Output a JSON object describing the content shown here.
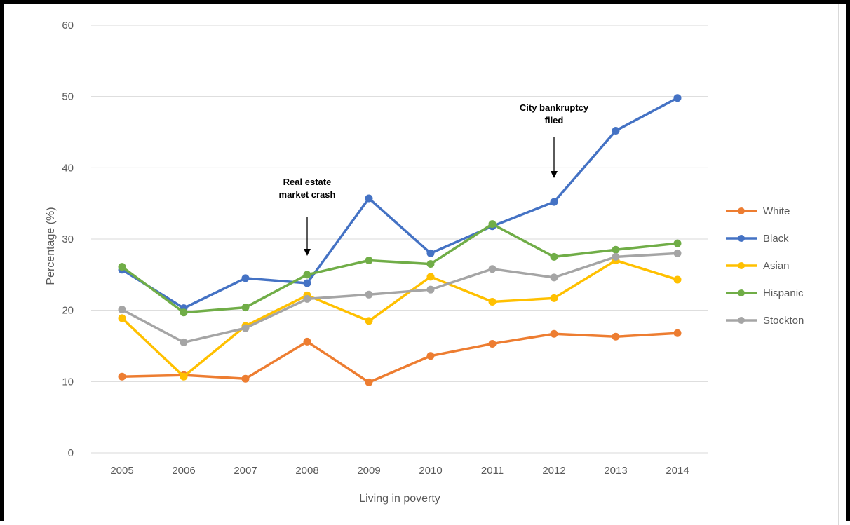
{
  "chart_data": {
    "type": "line",
    "title": "",
    "xlabel": "Living in poverty",
    "ylabel": "Percentage (%)",
    "categories": [
      "2005",
      "2006",
      "2007",
      "2008",
      "2009",
      "2010",
      "2011",
      "2012",
      "2013",
      "2014"
    ],
    "ylim": [
      0,
      60
    ],
    "yticks": [
      0,
      10,
      20,
      30,
      40,
      50,
      60
    ],
    "grid": true,
    "legend_position": "right",
    "series": [
      {
        "name": "White",
        "color": "#ED7D31",
        "values": [
          10.7,
          10.9,
          10.4,
          15.6,
          9.9,
          13.6,
          15.3,
          16.7,
          16.3,
          16.8
        ]
      },
      {
        "name": "Black",
        "color": "#4472C4",
        "values": [
          25.7,
          20.3,
          24.5,
          23.8,
          35.7,
          28.0,
          31.8,
          35.2,
          45.2,
          49.8
        ]
      },
      {
        "name": "Asian",
        "color": "#FFC000",
        "values": [
          18.9,
          10.7,
          17.8,
          22.1,
          18.5,
          24.7,
          21.2,
          21.7,
          27.0,
          24.3
        ]
      },
      {
        "name": "Hispanic",
        "color": "#70AD47",
        "values": [
          26.1,
          19.7,
          20.4,
          25.0,
          27.0,
          26.5,
          32.1,
          27.5,
          28.5,
          29.4
        ]
      },
      {
        "name": "Stockton",
        "color": "#A5A5A5",
        "values": [
          20.1,
          15.5,
          17.5,
          21.6,
          22.2,
          22.9,
          25.8,
          24.6,
          27.5,
          28.0
        ]
      }
    ],
    "annotations": [
      {
        "lines": [
          "Real estate",
          "market crash"
        ],
        "category": "2008"
      },
      {
        "lines": [
          "City bankruptcy",
          "filed"
        ],
        "category": "2012"
      }
    ]
  }
}
